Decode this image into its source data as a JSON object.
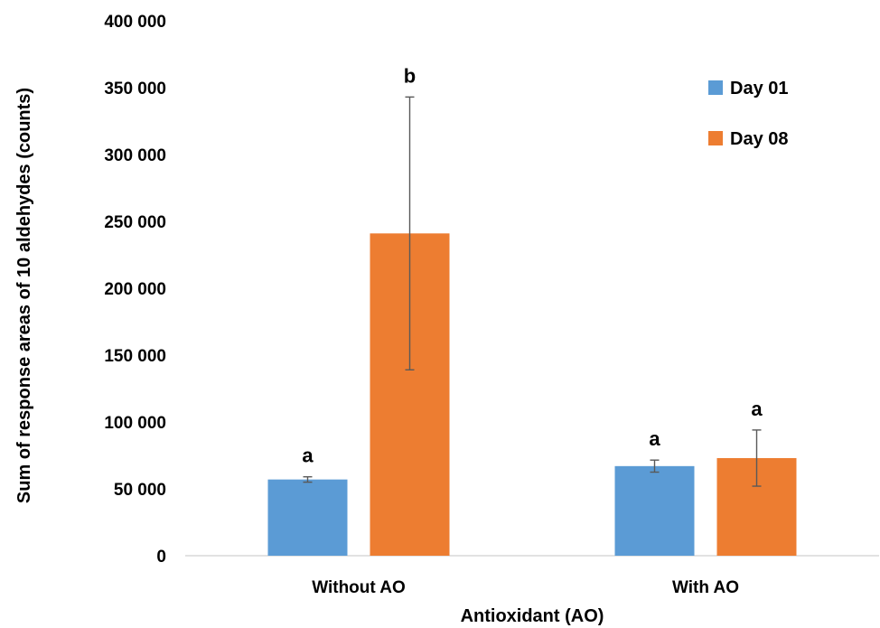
{
  "chart_data": {
    "type": "bar",
    "title": "",
    "xlabel": "Antioxidant (AO)",
    "ylabel": "Sum of response areas of 10 aldehydes (counts)",
    "categories": [
      "Without AO",
      "With AO"
    ],
    "ylim": [
      0,
      400000
    ],
    "yticks": [
      0,
      50000,
      100000,
      150000,
      200000,
      250000,
      300000,
      350000,
      400000
    ],
    "ytick_labels": [
      "0",
      "50 000",
      "100 000",
      "150 000",
      "200 000",
      "250 000",
      "300 000",
      "350 000",
      "400 000"
    ],
    "grid": false,
    "legend": "top-right",
    "series": [
      {
        "name": "Day 01",
        "color": "#5b9bd5",
        "values": [
          57000,
          67000
        ],
        "errors": [
          2000,
          4500
        ],
        "labels": [
          "a",
          "a"
        ]
      },
      {
        "name": "Day 08",
        "color": "#ed7d31",
        "values": [
          241000,
          73000
        ],
        "errors": [
          102000,
          21000
        ],
        "labels": [
          "b",
          "a"
        ]
      }
    ]
  }
}
